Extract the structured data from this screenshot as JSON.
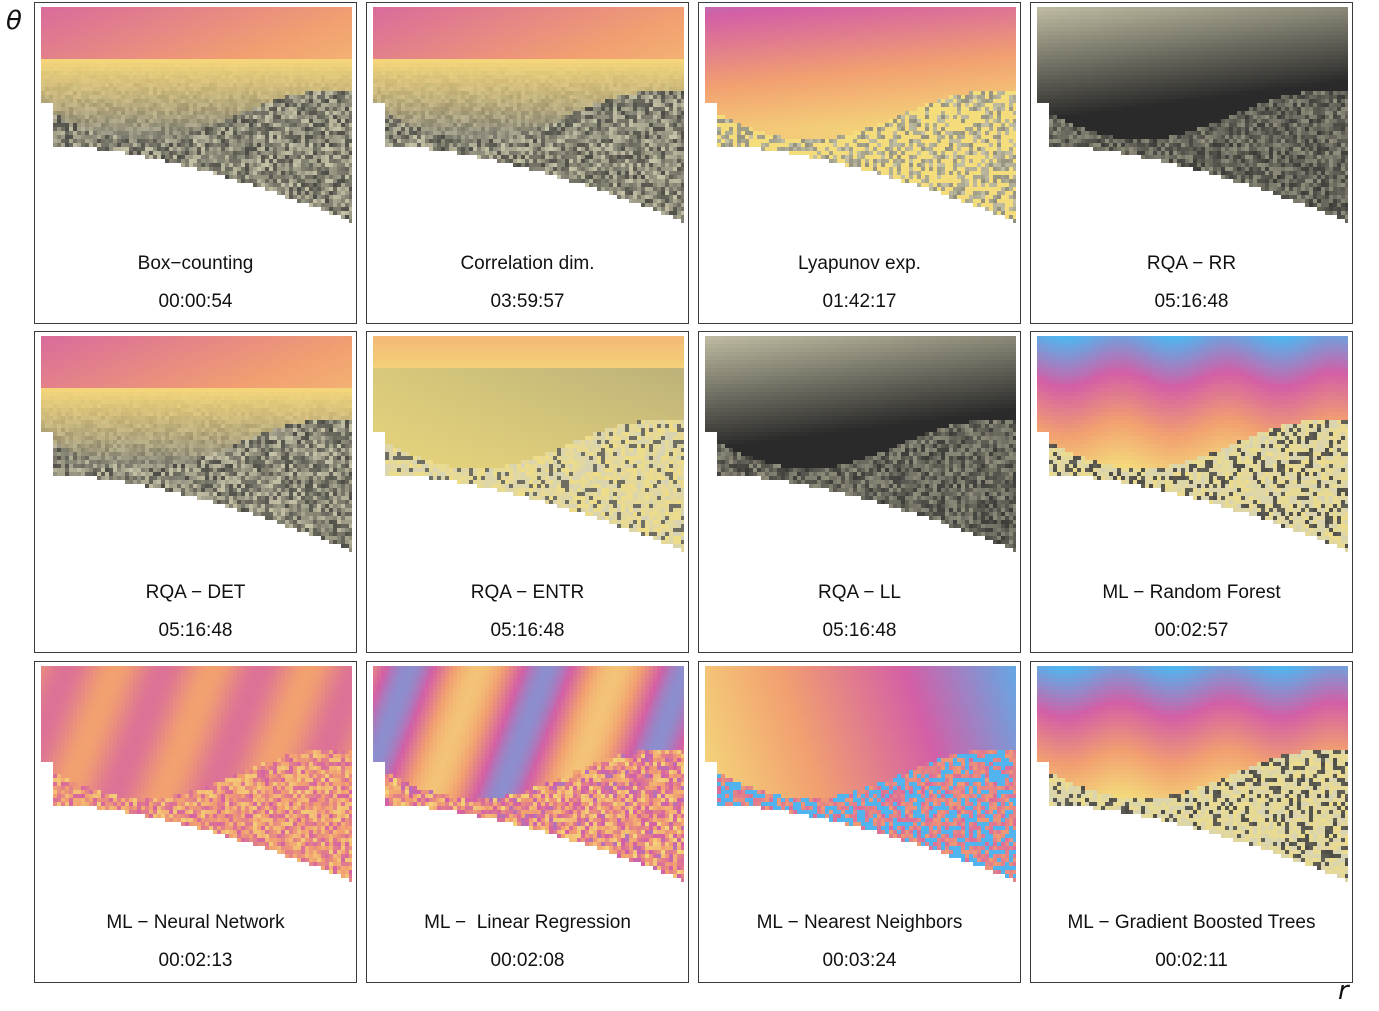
{
  "axis": {
    "y_label": "θ",
    "x_label": "r"
  },
  "colors": {
    "gray_low": "#2a2a2a",
    "gray_high": "#d7d3b5",
    "yellow": "#f4df7c",
    "orange": "#f2a070",
    "pink": "#d35fa6",
    "blue": "#52b4ee"
  },
  "chart_data": [
    {
      "type": "heatmap",
      "title": "Box−counting",
      "time": "00:00:54",
      "style": "gray-bottom-warm-top"
    },
    {
      "type": "heatmap",
      "title": "Correlation dim.",
      "time": "03:59:57",
      "style": "gray-bottom-warm-top"
    },
    {
      "type": "heatmap",
      "title": "Lyapunov exp.",
      "time": "01:42:17",
      "style": "pink-top-yellow-bottom"
    },
    {
      "type": "heatmap",
      "title": "RQA − RR",
      "time": "05:16:48",
      "style": "dark-gray"
    },
    {
      "type": "heatmap",
      "title": "RQA − DET",
      "time": "05:16:48",
      "style": "gray-bottom-warm-top"
    },
    {
      "type": "heatmap",
      "title": "RQA − ENTR",
      "time": "05:16:48",
      "style": "yellow-gray"
    },
    {
      "type": "heatmap",
      "title": "RQA − LL",
      "time": "05:16:48",
      "style": "dark-gray"
    },
    {
      "type": "heatmap",
      "title": "ML − Random Forest",
      "time": "00:02:57",
      "style": "banded-blue-pink-yellow"
    },
    {
      "type": "heatmap",
      "title": "ML − Neural Network",
      "time": "00:02:13",
      "style": "pink-orange"
    },
    {
      "type": "heatmap",
      "title": "ML −  Linear Regression",
      "time": "00:02:08",
      "style": "blue-pink-orange"
    },
    {
      "type": "heatmap",
      "title": "ML − Nearest Neighbors",
      "time": "00:03:24",
      "style": "yellow-pink-blue"
    },
    {
      "type": "heatmap",
      "title": "ML − Gradient Boosted Trees",
      "time": "00:02:11",
      "style": "banded-blue-pink-yellow"
    }
  ]
}
